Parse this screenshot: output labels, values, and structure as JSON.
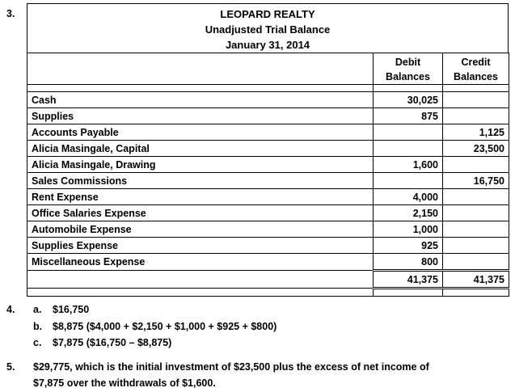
{
  "q3": {
    "number": "3.",
    "company": "LEOPARD REALTY",
    "statement": "Unadjusted Trial Balance",
    "date": "January 31, 2014",
    "col_debit": [
      "Debit",
      "Balances"
    ],
    "col_credit": [
      "Credit",
      "Balances"
    ],
    "accounts": [
      {
        "name": "Cash",
        "debit": "30,025",
        "credit": ""
      },
      {
        "name": "Supplies",
        "debit": "875",
        "credit": ""
      },
      {
        "name": "Accounts Payable",
        "debit": "",
        "credit": "1,125"
      },
      {
        "name": "Alicia Masingale, Capital",
        "debit": "",
        "credit": "23,500"
      },
      {
        "name": "Alicia Masingale, Drawing",
        "debit": "1,600",
        "credit": ""
      },
      {
        "name": "Sales Commissions",
        "debit": "",
        "credit": "16,750"
      },
      {
        "name": "Rent Expense",
        "debit": "4,000",
        "credit": ""
      },
      {
        "name": "Office Salaries Expense",
        "debit": "2,150",
        "credit": ""
      },
      {
        "name": "Automobile Expense",
        "debit": "1,000",
        "credit": ""
      },
      {
        "name": "Supplies Expense",
        "debit": "925",
        "credit": ""
      },
      {
        "name": "Miscellaneous Expense",
        "debit": "800",
        "credit": ""
      }
    ],
    "total_debit": "41,375",
    "total_credit": "41,375"
  },
  "q4": {
    "number": "4.",
    "a_label": "a.",
    "a_text": "$16,750",
    "b_label": "b.",
    "b_text": "$8,875 ($4,000 + $2,150 + $1,000 + $925 + $800)",
    "c_label": "c.",
    "c_text": "$7,875 ($16,750 – $8,875)"
  },
  "q5": {
    "number": "5.",
    "line1": "$29,775, which is the initial investment of $23,500 plus the excess of net income of",
    "line2": "$7,875 over the withdrawals of $1,600."
  }
}
